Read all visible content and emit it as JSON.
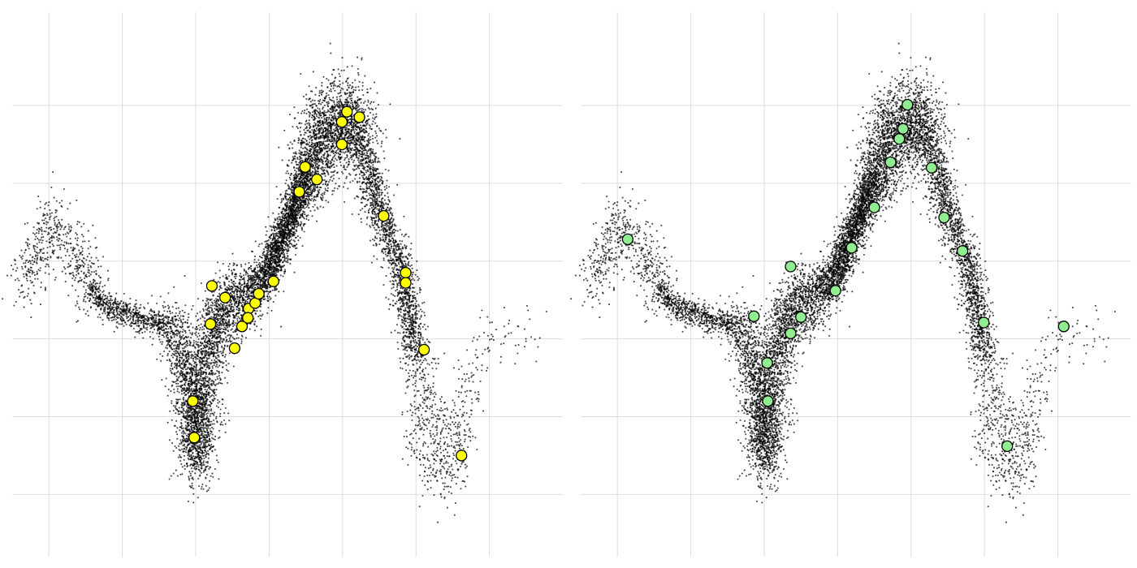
{
  "chart_data": [
    {
      "type": "scatter",
      "title": "",
      "xlabel": "",
      "ylabel": "",
      "grid": true,
      "xlim": [
        -2.5,
        5.0
      ],
      "ylim": [
        -2.8,
        4.2
      ],
      "xticks": [
        -2,
        -1,
        0,
        1,
        2,
        3,
        4
      ],
      "yticks": [
        -2,
        -1,
        0,
        1,
        2,
        3
      ],
      "background_series": {
        "shape": "curve-cloud",
        "color": "#000000",
        "curve": [
          [
            -2.35,
            0.7
          ],
          [
            -2.0,
            1.5
          ],
          [
            -1.7,
            1.2
          ],
          [
            -1.5,
            0.75
          ],
          [
            -1.25,
            0.45
          ],
          [
            -0.9,
            0.3
          ],
          [
            -0.3,
            0.15
          ],
          [
            -0.15,
            -0.3
          ],
          [
            -0.02,
            -1.0
          ],
          [
            0.0,
            -1.6
          ],
          [
            0.1,
            -0.6
          ],
          [
            0.25,
            0.2
          ],
          [
            0.45,
            0.45
          ],
          [
            0.7,
            0.55
          ],
          [
            1.0,
            0.85
          ],
          [
            1.2,
            1.35
          ],
          [
            1.5,
            2.05
          ],
          [
            1.8,
            2.75
          ],
          [
            2.0,
            2.9
          ],
          [
            2.25,
            2.5
          ],
          [
            2.5,
            1.65
          ],
          [
            2.8,
            0.9
          ],
          [
            3.0,
            -0.2
          ],
          [
            3.2,
            -1.5
          ],
          [
            3.4,
            -1.8
          ],
          [
            3.6,
            -1.0
          ],
          [
            3.8,
            -0.2
          ],
          [
            4.2,
            0.1
          ],
          [
            4.6,
            0.1
          ]
        ]
      },
      "highlight_series": {
        "color": "#ffff00",
        "edgecolor": "#000000",
        "points": [
          [
            0.22,
            0.68
          ],
          [
            0.4,
            0.53
          ],
          [
            0.2,
            0.19
          ],
          [
            0.53,
            -0.12
          ],
          [
            0.63,
            0.16
          ],
          [
            0.72,
            0.39
          ],
          [
            0.71,
            0.27
          ],
          [
            0.81,
            0.46
          ],
          [
            0.86,
            0.58
          ],
          [
            1.06,
            0.74
          ],
          [
            1.41,
            1.89
          ],
          [
            1.49,
            2.21
          ],
          [
            1.65,
            2.05
          ],
          [
            1.99,
            2.79
          ],
          [
            2.06,
            2.92
          ],
          [
            2.23,
            2.85
          ],
          [
            1.99,
            2.5
          ],
          [
            2.56,
            1.58
          ],
          [
            2.86,
            0.85
          ],
          [
            2.86,
            0.72
          ],
          [
            3.11,
            -0.14
          ],
          [
            3.62,
            -1.5
          ],
          [
            -0.04,
            -0.8
          ],
          [
            -0.02,
            -1.27
          ]
        ]
      }
    },
    {
      "type": "scatter",
      "title": "",
      "xlabel": "",
      "ylabel": "",
      "grid": true,
      "xlim": [
        -2.5,
        5.0
      ],
      "ylim": [
        -2.8,
        4.2
      ],
      "xticks": [
        -2,
        -1,
        0,
        1,
        2,
        3,
        4
      ],
      "yticks": [
        -2,
        -1,
        0,
        1,
        2,
        3
      ],
      "background_series": {
        "shape": "curve-cloud",
        "color": "#000000",
        "curve": [
          [
            -2.35,
            0.7
          ],
          [
            -2.0,
            1.5
          ],
          [
            -1.7,
            1.2
          ],
          [
            -1.5,
            0.75
          ],
          [
            -1.25,
            0.45
          ],
          [
            -0.9,
            0.3
          ],
          [
            -0.3,
            0.15
          ],
          [
            -0.15,
            -0.3
          ],
          [
            -0.02,
            -1.0
          ],
          [
            0.0,
            -1.6
          ],
          [
            0.1,
            -0.6
          ],
          [
            0.25,
            0.2
          ],
          [
            0.45,
            0.45
          ],
          [
            0.7,
            0.55
          ],
          [
            1.0,
            0.85
          ],
          [
            1.2,
            1.35
          ],
          [
            1.5,
            2.05
          ],
          [
            1.8,
            2.75
          ],
          [
            2.0,
            2.9
          ],
          [
            2.25,
            2.5
          ],
          [
            2.5,
            1.65
          ],
          [
            2.8,
            0.9
          ],
          [
            3.0,
            -0.2
          ],
          [
            3.2,
            -1.5
          ],
          [
            3.4,
            -1.8
          ],
          [
            3.6,
            -1.0
          ],
          [
            3.8,
            -0.2
          ],
          [
            4.2,
            0.1
          ],
          [
            4.6,
            0.1
          ]
        ]
      },
      "highlight_series": {
        "color": "#90ee90",
        "edgecolor": "#000000",
        "points": [
          [
            -1.86,
            1.28
          ],
          [
            -0.14,
            0.29
          ],
          [
            0.04,
            -0.31
          ],
          [
            0.05,
            -0.8
          ],
          [
            0.36,
            0.93
          ],
          [
            0.36,
            0.07
          ],
          [
            0.5,
            0.28
          ],
          [
            0.97,
            0.62
          ],
          [
            1.19,
            1.17
          ],
          [
            1.5,
            1.69
          ],
          [
            1.72,
            2.27
          ],
          [
            1.84,
            2.57
          ],
          [
            1.89,
            2.7
          ],
          [
            1.95,
            3.01
          ],
          [
            2.28,
            2.2
          ],
          [
            2.45,
            1.56
          ],
          [
            2.7,
            1.13
          ],
          [
            2.99,
            0.21
          ],
          [
            3.31,
            -1.38
          ],
          [
            4.08,
            0.16
          ]
        ]
      }
    }
  ]
}
